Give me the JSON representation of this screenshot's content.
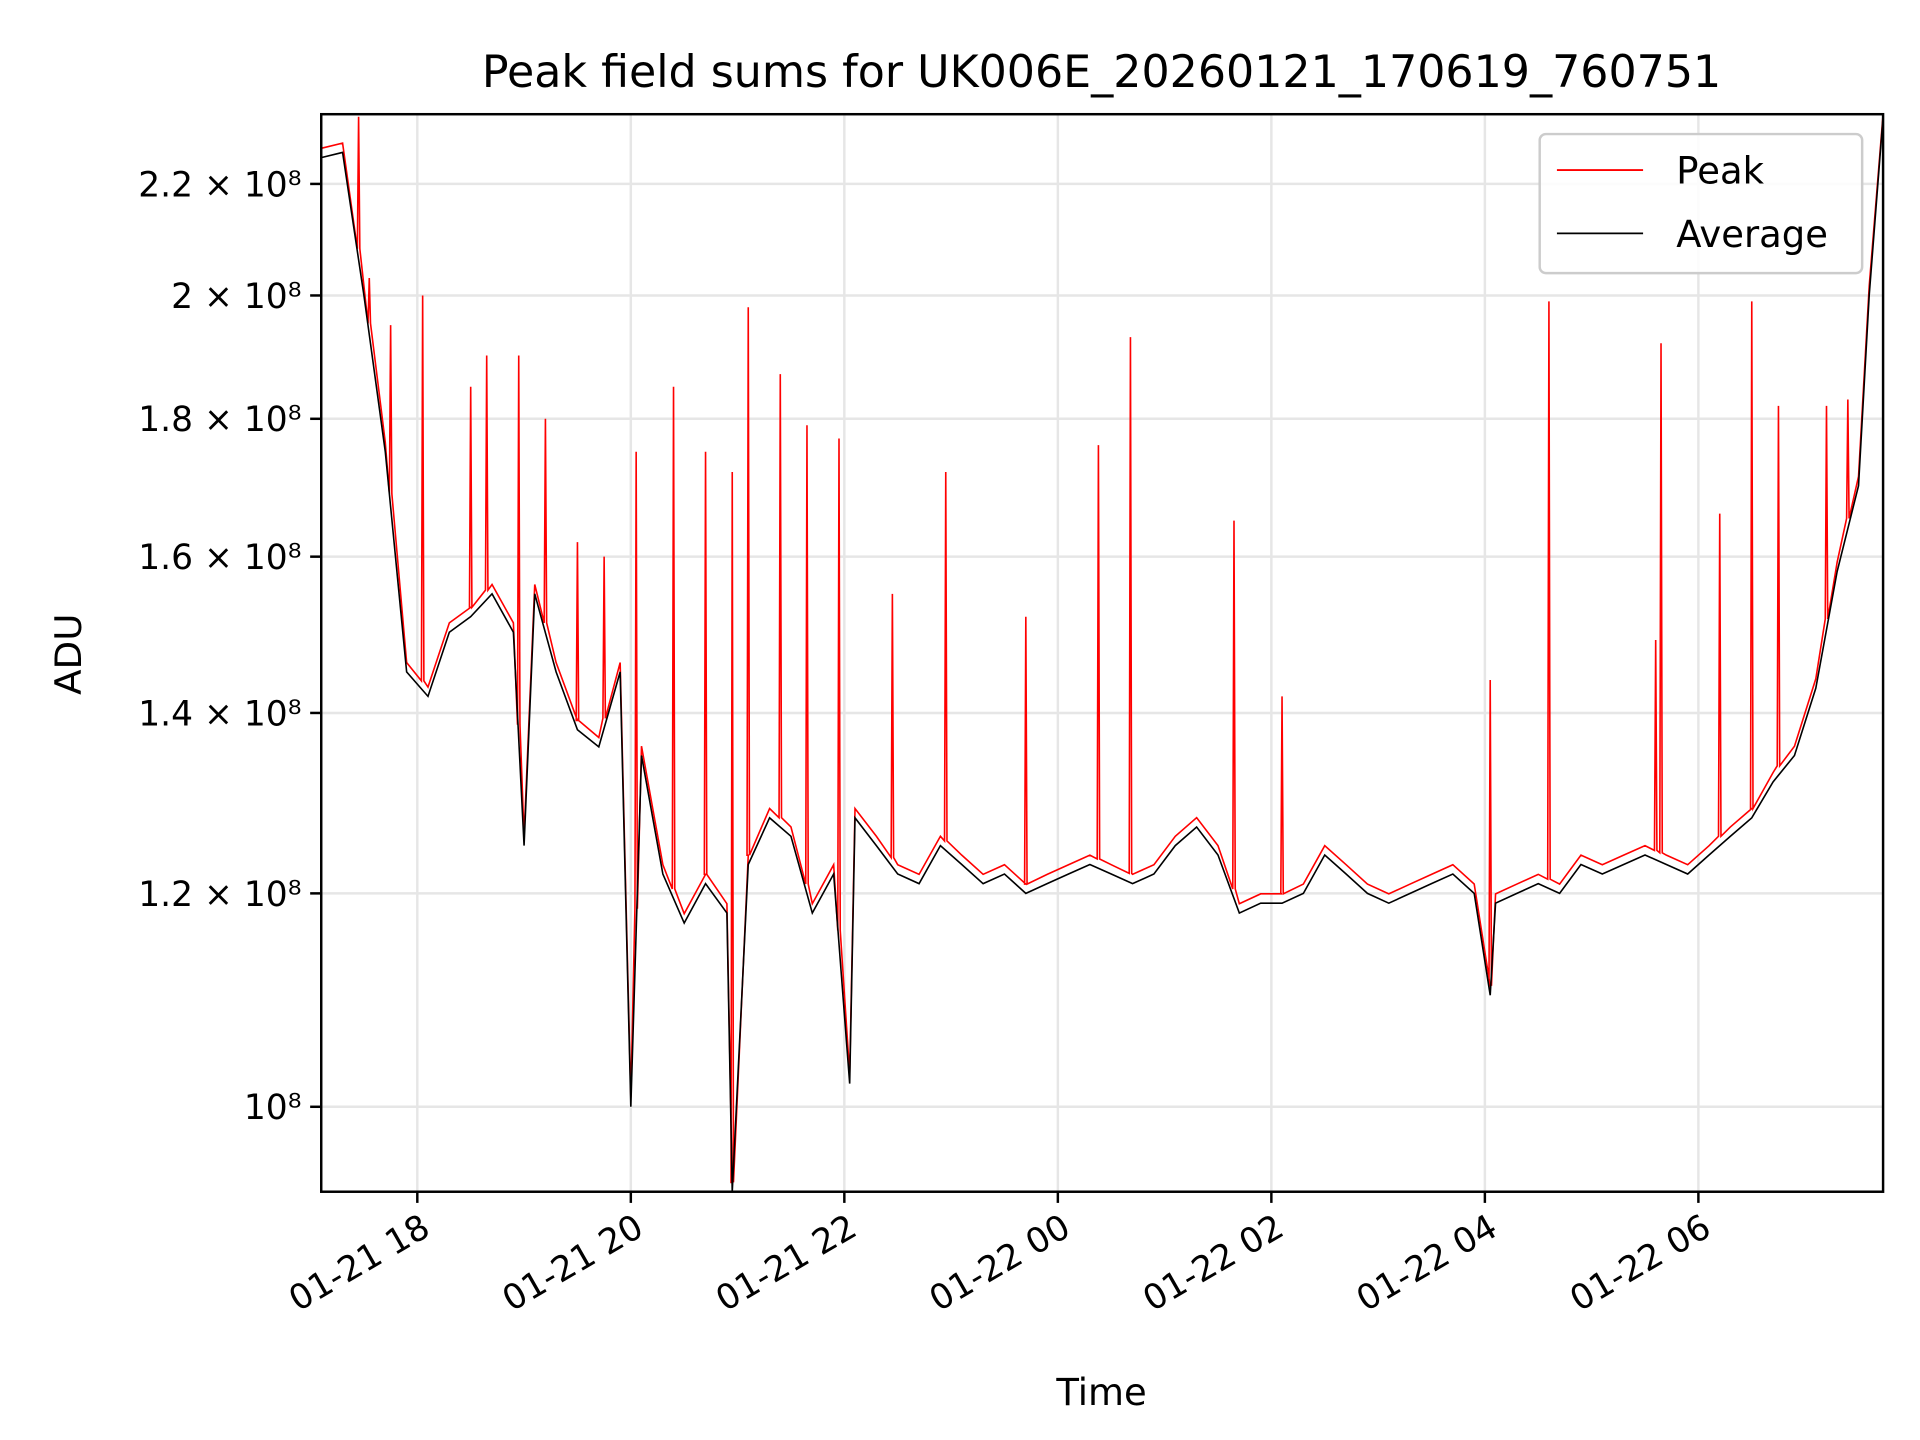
{
  "chart_data": {
    "type": "line",
    "title": "Peak field sums for UK006E_20260121_170619_760751",
    "xlabel": "Time",
    "ylabel": "ADU",
    "x_units": "hours since 01-21 00:00",
    "xlim": [
      17.1,
      31.73
    ],
    "ylim": [
      93000000.0,
      233500000.0
    ],
    "yscale": "log",
    "grid": true,
    "legend_position": "top-right",
    "x_ticks": [
      {
        "value": 18,
        "label": "01-21 18"
      },
      {
        "value": 20,
        "label": "01-21 20"
      },
      {
        "value": 22,
        "label": "01-21 22"
      },
      {
        "value": 24,
        "label": "01-22 00"
      },
      {
        "value": 26,
        "label": "01-22 02"
      },
      {
        "value": 28,
        "label": "01-22 04"
      },
      {
        "value": 30,
        "label": "01-22 06"
      }
    ],
    "y_ticks": [
      {
        "value": 100000000.0,
        "label": "10⁸"
      },
      {
        "value": 120000000.0,
        "label": "1.2 × 10⁸"
      },
      {
        "value": 140000000.0,
        "label": "1.4 × 10⁸"
      },
      {
        "value": 160000000.0,
        "label": "1.6 × 10⁸"
      },
      {
        "value": 180000000.0,
        "label": "1.8 × 10⁸"
      },
      {
        "value": 200000000.0,
        "label": "2 × 10⁸"
      },
      {
        "value": 220000000.0,
        "label": "2.2 × 10⁸"
      }
    ],
    "series": [
      {
        "name": "Peak",
        "color": "#ff0000",
        "offset_factor": 1.008,
        "spikes": [
          [
            17.45,
            233000000.0
          ],
          [
            17.55,
            203000000.0
          ],
          [
            17.75,
            195000000.0
          ],
          [
            18.05,
            200000000.0
          ],
          [
            18.5,
            185000000.0
          ],
          [
            18.65,
            190000000.0
          ],
          [
            18.95,
            190000000.0
          ],
          [
            19.2,
            180000000.0
          ],
          [
            19.5,
            162000000.0
          ],
          [
            19.75,
            160000000.0
          ],
          [
            20.05,
            175000000.0
          ],
          [
            20.4,
            185000000.0
          ],
          [
            20.7,
            175000000.0
          ],
          [
            20.95,
            172000000.0
          ],
          [
            21.1,
            198000000.0
          ],
          [
            21.4,
            187000000.0
          ],
          [
            21.65,
            179000000.0
          ],
          [
            21.95,
            177000000.0
          ],
          [
            22.45,
            155000000.0
          ],
          [
            22.95,
            172000000.0
          ],
          [
            23.7,
            152000000.0
          ],
          [
            24.38,
            176000000.0
          ],
          [
            24.68,
            193000000.0
          ],
          [
            25.65,
            165000000.0
          ],
          [
            26.1,
            142000000.0
          ],
          [
            28.05,
            144000000.0
          ],
          [
            28.6,
            199000000.0
          ],
          [
            29.6,
            149000000.0
          ],
          [
            29.65,
            192000000.0
          ],
          [
            30.2,
            166000000.0
          ],
          [
            30.5,
            199000000.0
          ],
          [
            30.75,
            182000000.0
          ],
          [
            31.2,
            182000000.0
          ],
          [
            31.4,
            183000000.0
          ]
        ]
      },
      {
        "name": "Average",
        "color": "#000000",
        "x": [
          17.1,
          17.3,
          17.5,
          17.7,
          17.9,
          18.1,
          18.3,
          18.5,
          18.7,
          18.9,
          19.0,
          19.1,
          19.3,
          19.5,
          19.7,
          19.9,
          20.0,
          20.1,
          20.3,
          20.5,
          20.7,
          20.9,
          20.95,
          21.1,
          21.3,
          21.5,
          21.7,
          21.9,
          22.05,
          22.1,
          22.3,
          22.5,
          22.7,
          22.9,
          23.1,
          23.3,
          23.5,
          23.7,
          23.9,
          24.1,
          24.3,
          24.5,
          24.7,
          24.9,
          25.1,
          25.3,
          25.5,
          25.7,
          25.9,
          26.1,
          26.3,
          26.5,
          26.7,
          26.9,
          27.1,
          27.3,
          27.5,
          27.7,
          27.9,
          28.05,
          28.1,
          28.3,
          28.5,
          28.7,
          28.9,
          29.1,
          29.3,
          29.5,
          29.7,
          29.9,
          30.1,
          30.3,
          30.5,
          30.7,
          30.9,
          31.1,
          31.3,
          31.5,
          31.6,
          31.73
        ],
        "y": [
          225000000.0,
          226000000.0,
          200000000.0,
          175000000.0,
          145000000.0,
          142000000.0,
          150000000.0,
          152000000.0,
          155000000.0,
          150000000.0,
          125000000.0,
          155000000.0,
          145000000.0,
          138000000.0,
          136000000.0,
          145000000.0,
          100000000.0,
          135000000.0,
          122000000.0,
          117000000.0,
          121000000.0,
          118000000.0,
          93000000.0,
          123000000.0,
          128000000.0,
          126000000.0,
          118000000.0,
          122000000.0,
          102000000.0,
          128000000.0,
          125000000.0,
          122000000.0,
          121000000.0,
          125000000.0,
          123000000.0,
          121000000.0,
          122000000.0,
          120000000.0,
          121000000.0,
          122000000.0,
          123000000.0,
          122000000.0,
          121000000.0,
          122000000.0,
          125000000.0,
          127000000.0,
          124000000.0,
          118000000.0,
          119000000.0,
          119000000.0,
          120000000.0,
          124000000.0,
          122000000.0,
          120000000.0,
          119000000.0,
          120000000.0,
          121000000.0,
          122000000.0,
          120000000.0,
          110000000.0,
          119000000.0,
          120000000.0,
          121000000.0,
          120000000.0,
          123000000.0,
          122000000.0,
          123000000.0,
          124000000.0,
          123000000.0,
          122000000.0,
          124000000.0,
          126000000.0,
          128000000.0,
          132000000.0,
          135000000.0,
          143000000.0,
          158000000.0,
          170000000.0,
          200000000.0,
          233000000.0
        ]
      }
    ]
  }
}
